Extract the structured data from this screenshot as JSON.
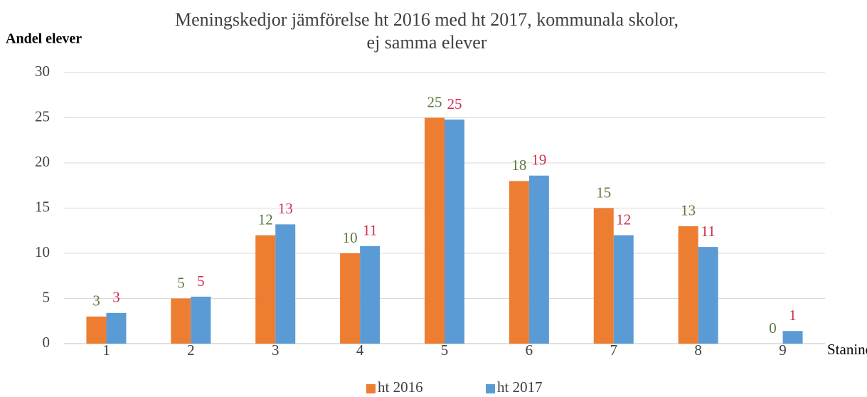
{
  "chart_data": {
    "type": "bar",
    "title": "Meningskedjor jämförelse ht 2016 med ht 2017, kommunala skolor,\nej samma elever",
    "y_label": "Andel elever",
    "x_label": "Stanine",
    "categories": [
      "1",
      "2",
      "3",
      "4",
      "5",
      "6",
      "7",
      "8",
      "9"
    ],
    "series": [
      {
        "name": "ht 2016",
        "color": "#ed7d31",
        "label_color": "#5b7a3a",
        "values": [
          3,
          5,
          12,
          10,
          25,
          18,
          15,
          13,
          0
        ]
      },
      {
        "name": "ht 2017",
        "color": "#5b9bd5",
        "label_color": "#d0304f",
        "values": [
          3.4,
          5.2,
          13.2,
          10.8,
          24.8,
          18.6,
          12,
          10.7,
          1.4
        ],
        "value_labels": [
          "3",
          "5",
          "13",
          "11",
          "25",
          "19",
          "12",
          "11",
          "1"
        ]
      }
    ],
    "ylim": [
      0,
      30
    ],
    "yticks": [
      0,
      5,
      10,
      15,
      20,
      25,
      30
    ],
    "grid": true,
    "legend": "bottom"
  }
}
